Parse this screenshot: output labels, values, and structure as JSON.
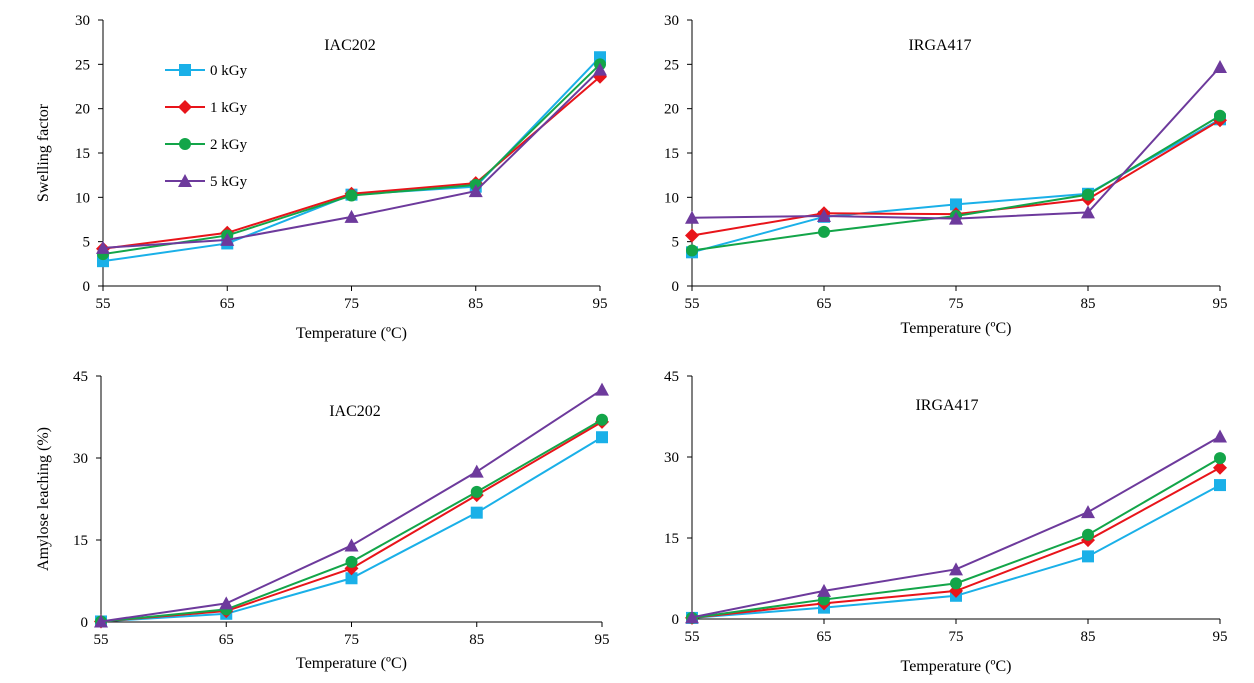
{
  "legend": {
    "entries": [
      {
        "label": "0 kGy",
        "color": "#1ab0e8",
        "marker": "square"
      },
      {
        "label": "1 kGy",
        "color": "#e8141a",
        "marker": "diamond"
      },
      {
        "label": "2 kGy",
        "color": "#13a549",
        "marker": "circle"
      },
      {
        "label": "5 kGy",
        "color": "#6d3a9c",
        "marker": "triangle"
      }
    ]
  },
  "chart_data": [
    {
      "type": "line",
      "title": "IAC202",
      "xlabel": "Temperature (ºC)",
      "ylabel": "Swelling factor",
      "x": [
        55,
        65,
        75,
        85,
        95
      ],
      "xticks": [
        "55",
        "65",
        "75",
        "85",
        "95"
      ],
      "ylim": [
        0,
        30
      ],
      "yticks": [
        "0",
        "5",
        "10",
        "15",
        "20",
        "25",
        "30"
      ],
      "legend": "inside-top-left",
      "grid": false,
      "series": [
        {
          "name": "0 kGy",
          "values": [
            2.8,
            4.8,
            10.3,
            11.2,
            25.8
          ]
        },
        {
          "name": "1 kGy",
          "values": [
            4.2,
            6.0,
            10.4,
            11.6,
            23.6
          ]
        },
        {
          "name": "2 kGy",
          "values": [
            3.6,
            5.7,
            10.2,
            11.4,
            25.0
          ]
        },
        {
          "name": "5 kGy",
          "values": [
            4.3,
            5.2,
            7.8,
            10.7,
            24.4
          ]
        }
      ]
    },
    {
      "type": "line",
      "title": "IRGA417",
      "xlabel": "Temperature (ºC)",
      "ylabel": "",
      "x": [
        55,
        65,
        75,
        85,
        95
      ],
      "xticks": [
        "55",
        "65",
        "75",
        "85",
        "95"
      ],
      "ylim": [
        0,
        30
      ],
      "yticks": [
        "0",
        "5",
        "10",
        "15",
        "20",
        "25",
        "30"
      ],
      "grid": false,
      "series": [
        {
          "name": "0 kGy",
          "values": [
            3.8,
            7.8,
            9.2,
            10.4,
            18.8
          ]
        },
        {
          "name": "1 kGy",
          "values": [
            5.7,
            8.2,
            8.1,
            9.8,
            18.7
          ]
        },
        {
          "name": "2 kGy",
          "values": [
            4.0,
            6.1,
            7.9,
            10.3,
            19.2
          ]
        },
        {
          "name": "5 kGy",
          "values": [
            7.7,
            7.9,
            7.6,
            8.3,
            24.7
          ]
        }
      ]
    },
    {
      "type": "line",
      "title": "IAC202",
      "xlabel": "Temperature (ºC)",
      "ylabel": "Amylose leaching (%)",
      "x": [
        55,
        65,
        75,
        85,
        95
      ],
      "xticks": [
        "55",
        "65",
        "75",
        "85",
        "95"
      ],
      "ylim": [
        0,
        45
      ],
      "yticks": [
        "0",
        "15",
        "30",
        "45"
      ],
      "grid": false,
      "series": [
        {
          "name": "0 kGy",
          "values": [
            0.1,
            1.5,
            8.0,
            20.0,
            33.8
          ]
        },
        {
          "name": "1 kGy",
          "values": [
            0.1,
            2.0,
            9.8,
            23.2,
            36.6
          ]
        },
        {
          "name": "2 kGy",
          "values": [
            0.1,
            2.3,
            11.0,
            23.8,
            37.0
          ]
        },
        {
          "name": "5 kGy",
          "values": [
            0.1,
            3.4,
            14.0,
            27.5,
            42.5
          ]
        }
      ]
    },
    {
      "type": "line",
      "title": "IRGA417",
      "xlabel": "Temperature (ºC)",
      "ylabel": "",
      "x": [
        55,
        65,
        75,
        85,
        95
      ],
      "xticks": [
        "55",
        "65",
        "75",
        "85",
        "95"
      ],
      "ylim": [
        0,
        45
      ],
      "yticks": [
        "0",
        "15",
        "30",
        "45"
      ],
      "grid": false,
      "series": [
        {
          "name": "0 kGy",
          "values": [
            0.2,
            2.1,
            4.3,
            11.6,
            24.8
          ]
        },
        {
          "name": "1 kGy",
          "values": [
            0.2,
            2.9,
            5.2,
            14.6,
            28.0
          ]
        },
        {
          "name": "2 kGy",
          "values": [
            0.2,
            3.6,
            6.6,
            15.6,
            29.8
          ]
        },
        {
          "name": "5 kGy",
          "values": [
            0.3,
            5.2,
            9.2,
            19.8,
            33.8
          ]
        }
      ]
    }
  ]
}
